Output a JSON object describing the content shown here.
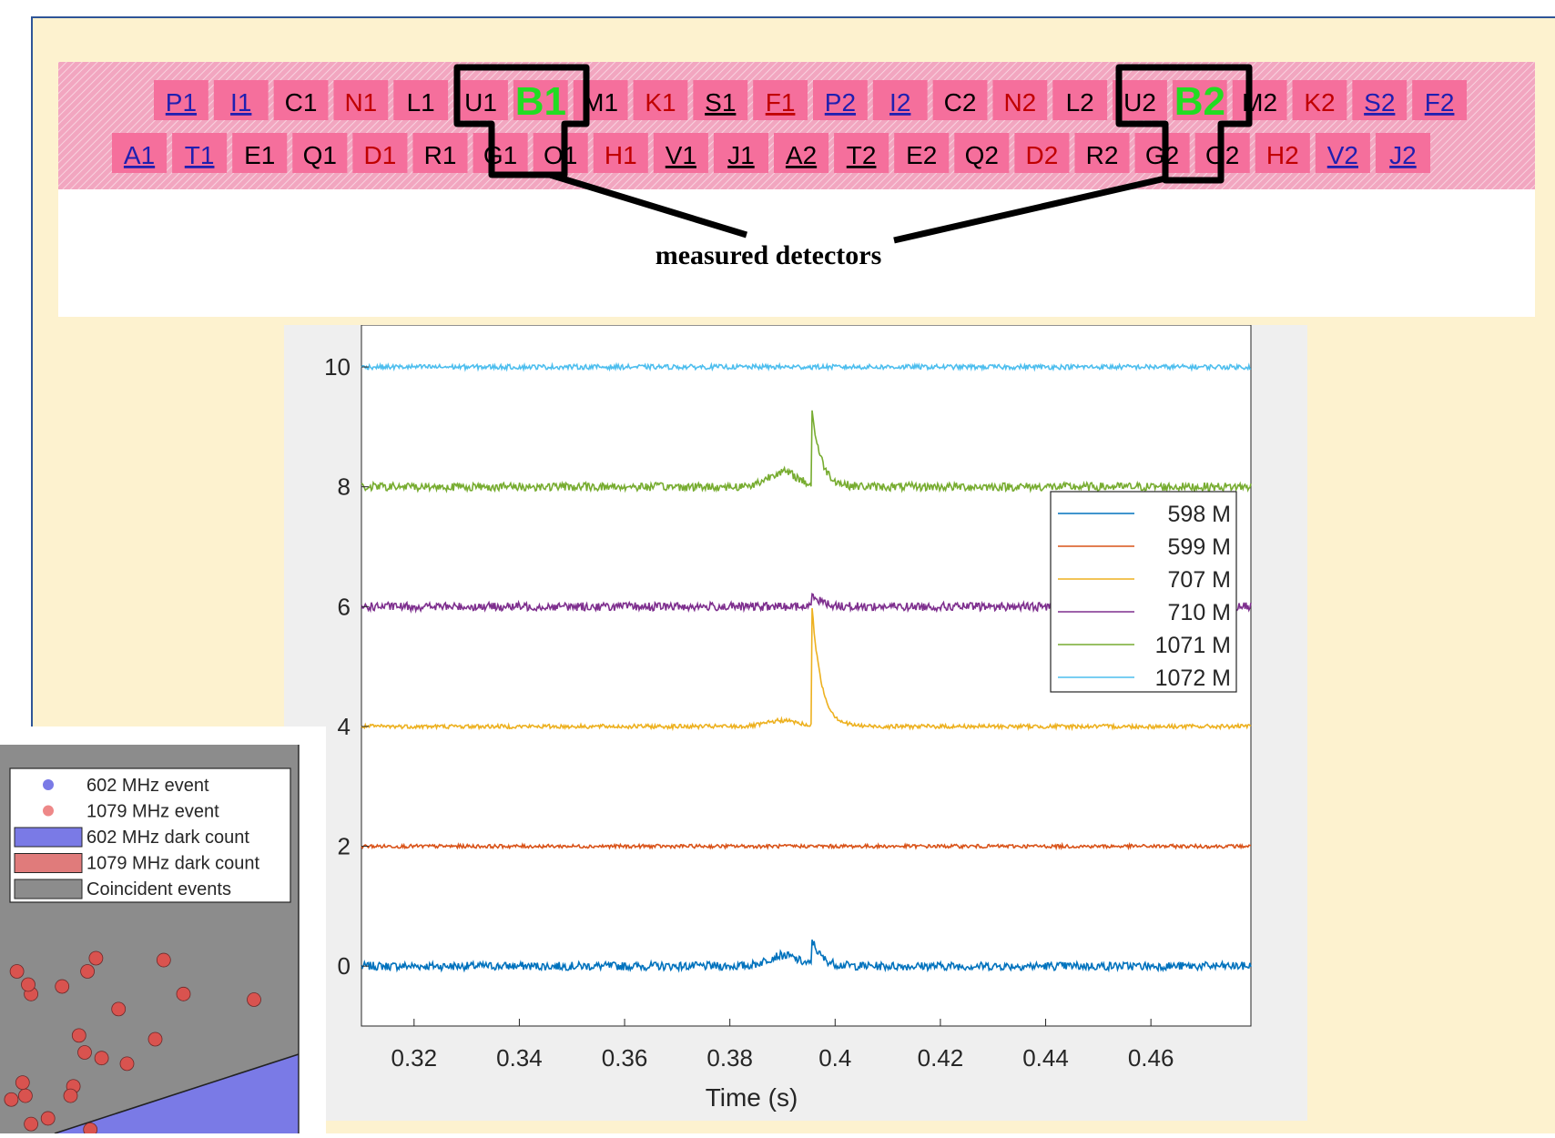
{
  "detector_array": {
    "row1": [
      {
        "text": "P1",
        "color": "#1f1fb0",
        "underline": true
      },
      {
        "text": "I1",
        "color": "#1f1fb0",
        "underline": true
      },
      {
        "text": "C1",
        "color": "#000000",
        "underline": false
      },
      {
        "text": "N1",
        "color": "#c00000",
        "underline": false
      },
      {
        "text": "L1",
        "color": "#000000",
        "underline": false
      },
      {
        "text": "U1",
        "color": "#000000",
        "underline": false
      },
      {
        "text": "B1",
        "color": "#22dd22",
        "underline": false,
        "big": true
      },
      {
        "text": "M1",
        "color": "#000000",
        "underline": false
      },
      {
        "text": "K1",
        "color": "#c00000",
        "underline": false
      },
      {
        "text": "S1",
        "color": "#000000",
        "underline": true
      },
      {
        "text": "F1",
        "color": "#c00000",
        "underline": true
      },
      {
        "text": "P2",
        "color": "#1f1fb0",
        "underline": true
      },
      {
        "text": "I2",
        "color": "#1f1fb0",
        "underline": true
      },
      {
        "text": "C2",
        "color": "#000000",
        "underline": false
      },
      {
        "text": "N2",
        "color": "#c00000",
        "underline": false
      },
      {
        "text": "L2",
        "color": "#000000",
        "underline": false
      },
      {
        "text": "U2",
        "color": "#000000",
        "underline": false
      },
      {
        "text": "B2",
        "color": "#22dd22",
        "underline": false,
        "big": true
      },
      {
        "text": "M2",
        "color": "#000000",
        "underline": false
      },
      {
        "text": "K2",
        "color": "#c00000",
        "underline": false
      },
      {
        "text": "S2",
        "color": "#1f1fb0",
        "underline": true
      },
      {
        "text": "F2",
        "color": "#1f1fb0",
        "underline": true
      }
    ],
    "row2": [
      {
        "text": "A1",
        "color": "#1f1fb0",
        "underline": true
      },
      {
        "text": "T1",
        "color": "#1f1fb0",
        "underline": true
      },
      {
        "text": "E1",
        "color": "#000000",
        "underline": false
      },
      {
        "text": "Q1",
        "color": "#000000",
        "underline": false
      },
      {
        "text": "D1",
        "color": "#c00000",
        "underline": false
      },
      {
        "text": "R1",
        "color": "#000000",
        "underline": false
      },
      {
        "text": "G1",
        "color": "#000000",
        "underline": false
      },
      {
        "text": "O1",
        "color": "#000000",
        "underline": false
      },
      {
        "text": "H1",
        "color": "#c00000",
        "underline": false
      },
      {
        "text": "V1",
        "color": "#000000",
        "underline": true
      },
      {
        "text": "J1",
        "color": "#000000",
        "underline": true
      },
      {
        "text": "A2",
        "color": "#000000",
        "underline": true
      },
      {
        "text": "T2",
        "color": "#000000",
        "underline": true
      },
      {
        "text": "E2",
        "color": "#000000",
        "underline": false
      },
      {
        "text": "Q2",
        "color": "#000000",
        "underline": false
      },
      {
        "text": "D2",
        "color": "#c00000",
        "underline": false
      },
      {
        "text": "R2",
        "color": "#000000",
        "underline": false
      },
      {
        "text": "G2",
        "color": "#000000",
        "underline": false
      },
      {
        "text": "O2",
        "color": "#000000",
        "underline": false
      },
      {
        "text": "H2",
        "color": "#c00000",
        "underline": false
      },
      {
        "text": "V2",
        "color": "#1f1fb0",
        "underline": true
      },
      {
        "text": "J2",
        "color": "#1f1fb0",
        "underline": true
      }
    ],
    "pad_color": "#f56f9c",
    "annotation": "measured detectors"
  },
  "chart_data": [
    {
      "type": "line",
      "title": "",
      "xlabel": "Time (s)",
      "ylabel": "",
      "xlim": [
        0.31,
        0.479
      ],
      "ylim": [
        -1,
        10.7
      ],
      "xticks": [
        0.32,
        0.34,
        0.36,
        0.38,
        0.4,
        0.42,
        0.44,
        0.46
      ],
      "xtick_labels": [
        "0.32",
        "0.34",
        "0.36",
        "0.38",
        "0.4",
        "0.42",
        "0.44",
        "0.46"
      ],
      "yticks": [
        0,
        2,
        4,
        6,
        8,
        10
      ],
      "ytick_labels": [
        "0",
        "2",
        "4",
        "6",
        "8",
        "10"
      ],
      "grid": false,
      "legend_position": "right",
      "series": [
        {
          "name": "598 M",
          "color": "#0072bd",
          "baseline": 0,
          "noise": 0.07,
          "pulse_peak": 0.45,
          "bump": 0.18
        },
        {
          "name": "599 M",
          "color": "#d95319",
          "baseline": 2,
          "noise": 0.03,
          "pulse_peak": 0,
          "bump": 0
        },
        {
          "name": "707 M",
          "color": "#edb120",
          "baseline": 4,
          "noise": 0.035,
          "pulse_peak": 2.1,
          "bump": 0.1
        },
        {
          "name": "710 M",
          "color": "#7e2f8e",
          "baseline": 6,
          "noise": 0.07,
          "pulse_peak": 0.25,
          "bump": 0
        },
        {
          "name": "1071 M",
          "color": "#77ac30",
          "baseline": 8,
          "noise": 0.07,
          "pulse_peak": 1.3,
          "bump": 0.25
        },
        {
          "name": "1072 M",
          "color": "#4dbeee",
          "baseline": 10,
          "noise": 0.04,
          "pulse_peak": 0,
          "bump": 0
        }
      ],
      "pulse_time": 0.3955
    },
    {
      "type": "scatter",
      "title": "",
      "legend_position": "top",
      "legend": [
        {
          "label": "602 MHz event",
          "kind": "marker",
          "color": "#7a7ae6"
        },
        {
          "label": "1079 MHz event",
          "kind": "marker",
          "color": "#ee8888"
        },
        {
          "label": "602 MHz dark count",
          "kind": "patch",
          "color": "#7a7ae6"
        },
        {
          "label": "1079 MHz dark count",
          "kind": "patch",
          "color": "#e07b7b"
        },
        {
          "label": "Coincident events",
          "kind": "patch",
          "color": "#8c8c8c"
        }
      ],
      "background_color": "#8c8c8c",
      "region_602_color": "#7a7ae6",
      "marker_color": "#d9534f",
      "points": [
        [
          0.11,
          0.05
        ],
        [
          0.09,
          0.2
        ],
        [
          0.08,
          0.27
        ],
        [
          0.26,
          0.25
        ],
        [
          0.32,
          0.02
        ],
        [
          0.17,
          0.08
        ],
        [
          0.25,
          0.2
        ],
        [
          0.3,
          0.43
        ],
        [
          0.28,
          0.52
        ],
        [
          0.31,
          0.86
        ],
        [
          0.34,
          0.93
        ],
        [
          0.58,
          0.92
        ],
        [
          0.55,
          0.5
        ],
        [
          0.36,
          0.4
        ],
        [
          0.45,
          0.37
        ],
        [
          0.65,
          0.74
        ],
        [
          0.9,
          0.71
        ],
        [
          0.11,
          0.74
        ],
        [
          0.06,
          0.86
        ],
        [
          0.1,
          0.79
        ],
        [
          0.42,
          0.66
        ],
        [
          0.22,
          0.78
        ],
        [
          0.04,
          0.18
        ]
      ]
    }
  ]
}
